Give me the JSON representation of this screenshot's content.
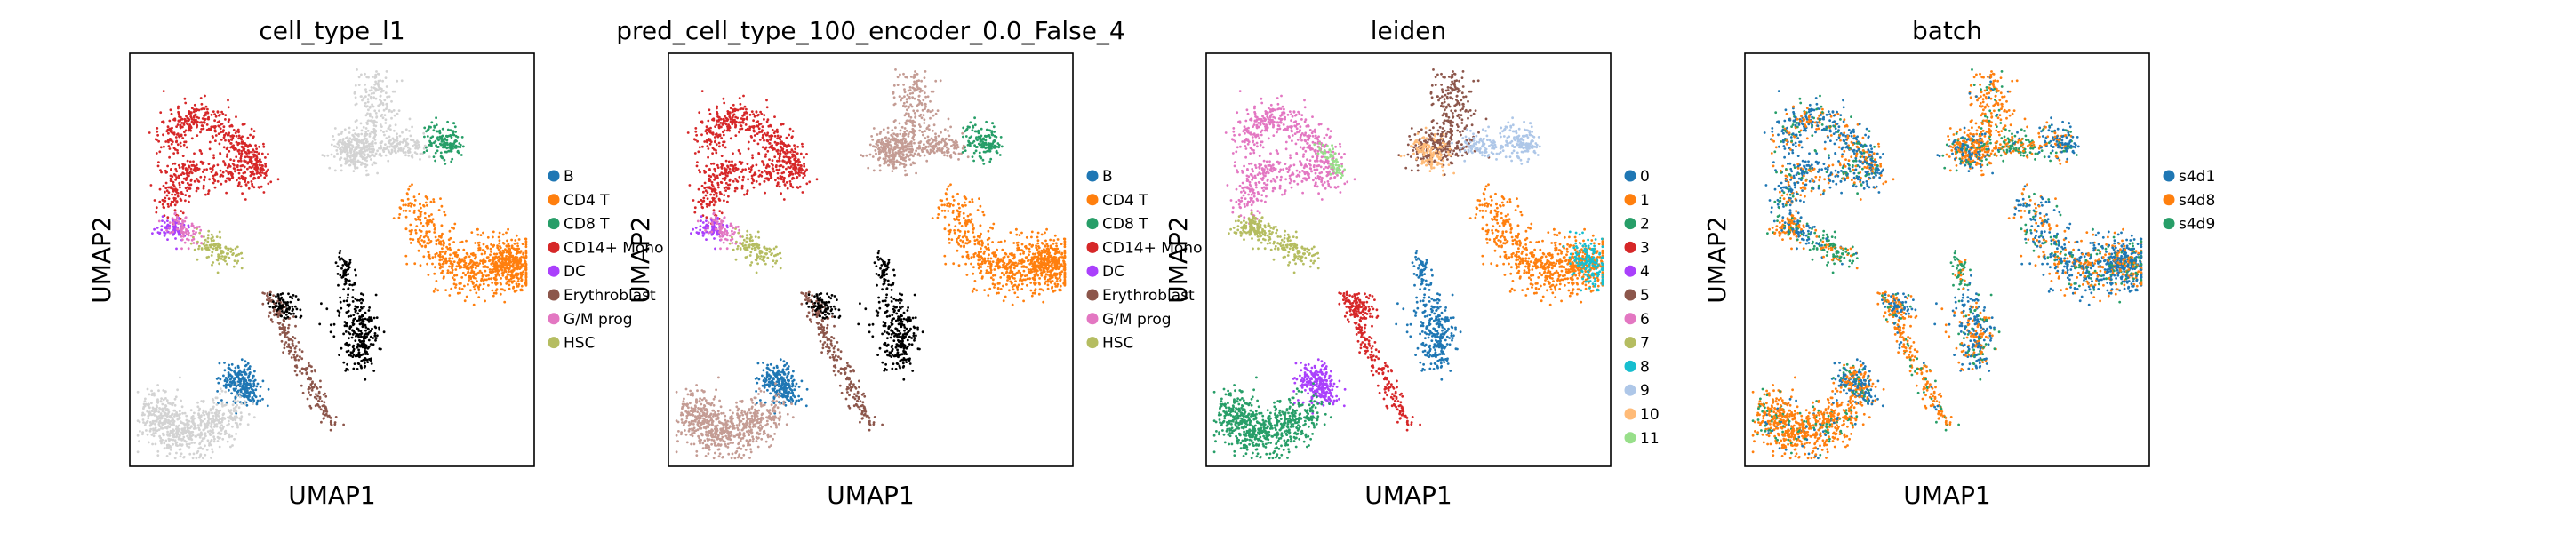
{
  "figure": {
    "panels": [
      {
        "title": "cell_type_l1",
        "xlabel": "UMAP1",
        "ylabel": "UMAP2"
      },
      {
        "title": "pred_cell_type_100_encoder_0.0_False_4",
        "xlabel": "UMAP1",
        "ylabel": "UMAP2"
      },
      {
        "title": "leiden",
        "xlabel": "UMAP1",
        "ylabel": "UMAP2"
      },
      {
        "title": "batch",
        "xlabel": "UMAP1",
        "ylabel": "UMAP2"
      }
    ]
  },
  "chart_data": [
    {
      "type": "scatter",
      "title": "cell_type_l1",
      "xlabel": "UMAP1",
      "ylabel": "UMAP2",
      "legend_position": "right",
      "categories": [
        "B",
        "CD4 T",
        "CD8 T",
        "CD14+ Mono",
        "DC",
        "Erythroblast",
        "G/M prog",
        "HSC"
      ],
      "colors": [
        "#1f77b4",
        "#ff7f0e",
        "#279e68",
        "#d62728",
        "#aa40fc",
        "#8c564b",
        "#e377c2",
        "#b5bd61"
      ],
      "unlabeled_color": "#d3d3d3"
    },
    {
      "type": "scatter",
      "title": "pred_cell_type_100_encoder_0.0_False_4",
      "xlabel": "UMAP1",
      "ylabel": "UMAP2",
      "legend_position": "right",
      "categories": [
        "B",
        "CD4 T",
        "CD8 T",
        "CD14+ Mono",
        "DC",
        "Erythroblast",
        "G/M prog",
        "HSC"
      ],
      "colors": [
        "#1f77b4",
        "#ff7f0e",
        "#279e68",
        "#d62728",
        "#aa40fc",
        "#8c564b",
        "#e377c2",
        "#b5bd61"
      ],
      "extra_color": "#c49c94"
    },
    {
      "type": "scatter",
      "title": "leiden",
      "xlabel": "UMAP1",
      "ylabel": "UMAP2",
      "legend_position": "right",
      "categories": [
        "0",
        "1",
        "2",
        "3",
        "4",
        "5",
        "6",
        "7",
        "8",
        "9",
        "10",
        "11"
      ],
      "colors": [
        "#1f77b4",
        "#ff7f0e",
        "#279e68",
        "#d62728",
        "#aa40fc",
        "#8c564b",
        "#e377c2",
        "#b5bd61",
        "#17becf",
        "#aec7e8",
        "#ffbb78",
        "#98df8a"
      ]
    },
    {
      "type": "scatter",
      "title": "batch",
      "xlabel": "UMAP1",
      "ylabel": "UMAP2",
      "legend_position": "right",
      "categories": [
        "s4d1",
        "s4d8",
        "s4d9"
      ],
      "colors": [
        "#1f77b4",
        "#ff7f0e",
        "#279e68"
      ]
    }
  ]
}
